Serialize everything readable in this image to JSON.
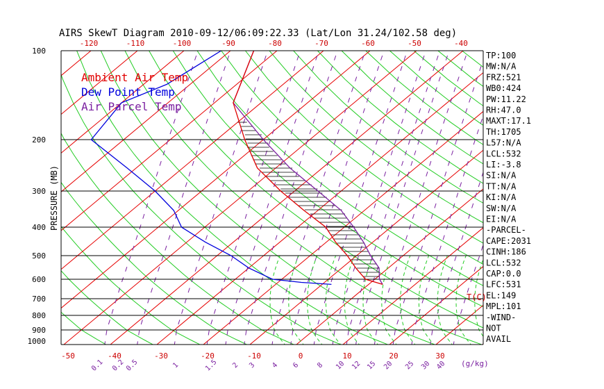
{
  "chart_data": {
    "type": "skewt",
    "title": "AIRS SkewT Diagram 2010-09-12/06:09:22.33 (Lat/Lon 31.24/102.58 deg)",
    "ylabel": "PRESSURE (MB)",
    "x_unit_label": "T(C)",
    "mixing_unit_label": "(g/kg)",
    "pressure_ticks": [
      100,
      200,
      300,
      400,
      500,
      600,
      700,
      800,
      900,
      1000
    ],
    "pressure_lines": [
      200,
      300,
      400,
      500,
      600,
      700,
      800,
      900
    ],
    "ylim": [
      1050,
      100
    ],
    "top_temp_ticks": [
      -120,
      -110,
      -100,
      -90,
      -80,
      -70,
      -60,
      -50,
      -40
    ],
    "bottom_temp_ticks": [
      -50,
      -40,
      -30,
      -20,
      -10,
      0,
      10,
      20,
      30
    ],
    "mixing_ratio_labels": [
      "0.1",
      "0.2",
      "0.5",
      "1",
      "1.5",
      "2",
      "3",
      "4",
      "6",
      "8",
      "10",
      "12",
      "15",
      "20",
      "25",
      "30",
      "40"
    ],
    "legend": [
      {
        "name": "Ambient Air Temp",
        "color": "#e00000"
      },
      {
        "name": "Dew Point Temp",
        "color": "#0000dd"
      },
      {
        "name": "Air Parcel Temp",
        "color": "#7a1fa0"
      }
    ],
    "series": [
      {
        "name": "Ambient Air Temp",
        "points": [
          [
            100,
            -85
          ],
          [
            150,
            -76
          ],
          [
            200,
            -64
          ],
          [
            250,
            -54
          ],
          [
            300,
            -43
          ],
          [
            350,
            -33
          ],
          [
            400,
            -24
          ],
          [
            450,
            -18
          ],
          [
            500,
            -12
          ],
          [
            550,
            -7
          ],
          [
            600,
            -2
          ],
          [
            625,
            3
          ]
        ]
      },
      {
        "name": "Dew Point Temp",
        "points": [
          [
            100,
            -92
          ],
          [
            130,
            -95
          ],
          [
            150,
            -100
          ],
          [
            200,
            -97
          ],
          [
            250,
            -82
          ],
          [
            300,
            -70
          ],
          [
            350,
            -61
          ],
          [
            400,
            -55
          ],
          [
            450,
            -46
          ],
          [
            500,
            -37
          ],
          [
            550,
            -30
          ],
          [
            600,
            -22
          ],
          [
            615,
            -15
          ],
          [
            625,
            -8
          ]
        ]
      },
      {
        "name": "Air Parcel Temp",
        "points": [
          [
            100,
            -85
          ],
          [
            150,
            -76
          ],
          [
            200,
            -60
          ],
          [
            250,
            -47
          ],
          [
            300,
            -35
          ],
          [
            350,
            -25
          ],
          [
            400,
            -18
          ],
          [
            450,
            -12
          ],
          [
            500,
            -7
          ],
          [
            550,
            -2
          ],
          [
            600,
            1
          ],
          [
            625,
            3
          ]
        ]
      }
    ],
    "indices": [
      "TP:100",
      "MW:N/A",
      "FRZ:521",
      "WB0:424",
      "PW:11.22",
      "RH:47.0",
      "MAXT:17.1",
      "TH:1705",
      "L57:N/A",
      "LCL:532",
      "LI:-3.8",
      "SI:N/A",
      "TT:N/A",
      "KI:N/A",
      "SW:N/A",
      "EI:N/A",
      "-PARCEL-",
      "CAPE:2031",
      "CINH:186",
      "LCL:532",
      "CAP:0.0",
      "LFC:531",
      "EL:149",
      "MPL:101",
      "-WIND-",
      "NOT",
      "AVAIL"
    ]
  }
}
